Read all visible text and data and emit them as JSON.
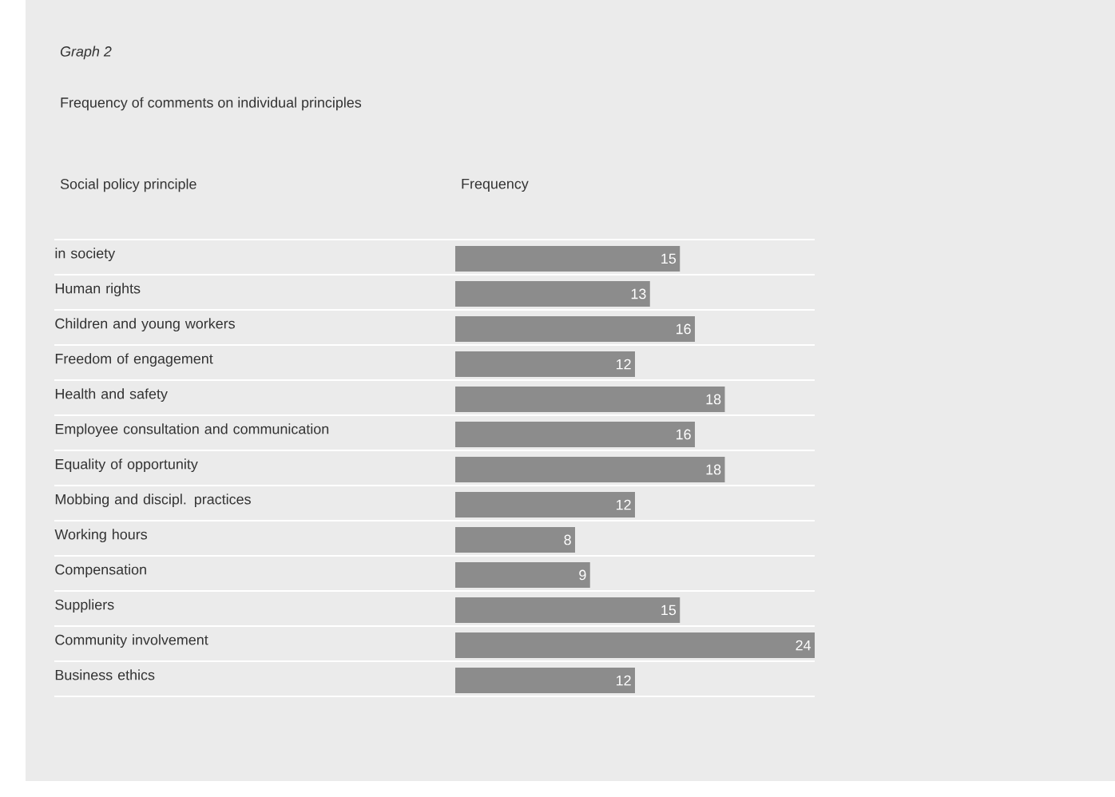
{
  "chart_data": {
    "type": "bar",
    "orientation": "horizontal",
    "title": "Graph 2",
    "subtitle": "Frequency of comments on individual principles",
    "ylabel": "Social policy principle",
    "xlabel": "Frequency",
    "categories": [
      "in society",
      "Human rights",
      "Children and young workers",
      "Freedom of engagement",
      "Health and safety",
      "Employee consultation and communication",
      "Equality of opportunity",
      "Mobbing and discipl. practices",
      "Working hours",
      "Compensation",
      "Suppliers",
      "Community involvement",
      "Business ethics"
    ],
    "values": [
      15,
      13,
      16,
      12,
      18,
      16,
      18,
      12,
      8,
      9,
      15,
      24,
      12
    ],
    "color": "#8c8c8c",
    "data_labels": true
  }
}
